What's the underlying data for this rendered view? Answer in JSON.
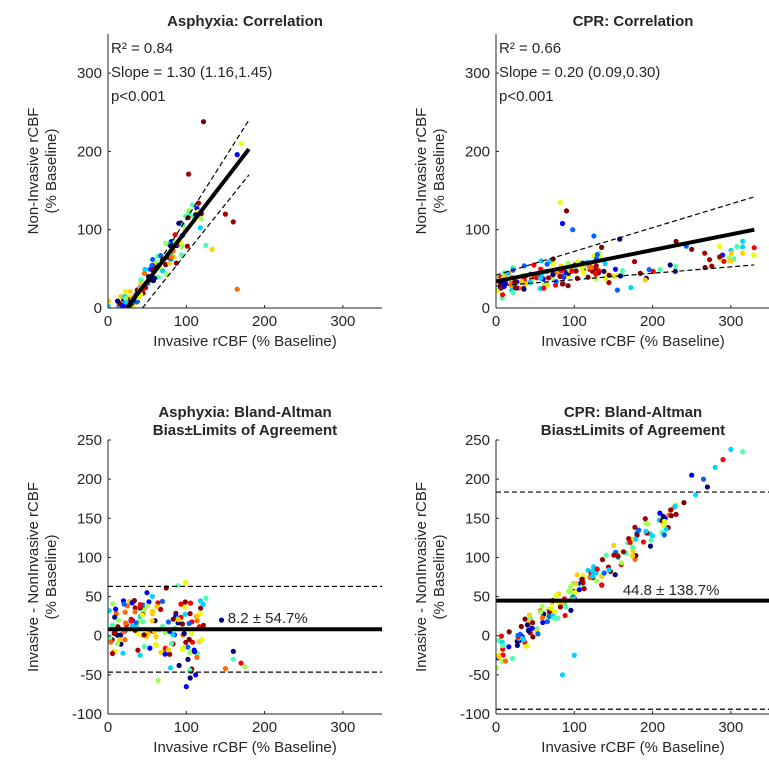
{
  "palette": [
    "#00007f",
    "#0000ff",
    "#0063ff",
    "#00d4ff",
    "#4dffaa",
    "#a0ff56",
    "#e8ff00",
    "#ffd000",
    "#ff6a00",
    "#ff0000",
    "#a00000",
    "#7f0000"
  ],
  "chart_data": [
    {
      "id": "asphyxia-correlation",
      "type": "scatter",
      "title": "Asphyxia: Correlation",
      "xlabel": "Invasive rCBF (% Baseline)",
      "ylabel": [
        "Non-Invasive rCBF",
        "(% Baseline)"
      ],
      "xlim": [
        0,
        350
      ],
      "ylim": [
        0,
        350
      ],
      "xticks": [
        0,
        100,
        200,
        300
      ],
      "yticks": [
        0,
        100,
        200,
        300
      ],
      "stats": {
        "r2": "R² = 0.84",
        "slope": "Slope = 1.30 (1.16,1.45)",
        "p": "p<0.001"
      },
      "fit": {
        "slope": 1.3,
        "intercept": -31,
        "x_range": [
          24,
          180
        ],
        "ci_upper": [
          [
            28,
            0
          ],
          [
            180,
            240
          ]
        ],
        "ci_lower": [
          [
            44,
            0
          ],
          [
            180,
            170
          ]
        ]
      },
      "seed": 11,
      "clusters": [
        {
          "kind": "fit",
          "count": 120,
          "x": [
            12,
            120
          ],
          "slope": 1.3,
          "intercept": -31,
          "spread": 28
        },
        {
          "kind": "box",
          "count": 15,
          "x": [
            0,
            40
          ],
          "y": [
            0,
            15
          ]
        },
        {
          "kind": "points",
          "points": [
            [
              122,
              238
            ],
            [
              103,
              171
            ],
            [
              165,
              196
            ],
            [
              170,
              210
            ],
            [
              133,
              75
            ],
            [
              125,
              80
            ],
            [
              150,
              120
            ],
            [
              160,
              110
            ],
            [
              165,
              24
            ],
            [
              108,
              132
            ]
          ]
        }
      ]
    },
    {
      "id": "cpr-correlation",
      "type": "scatter",
      "title": "CPR: Correlation",
      "xlabel": "Invasive rCBF (% Baseline)",
      "ylabel": [
        "Non-Invasive rCBF",
        "(% Baseline)"
      ],
      "xlim": [
        0,
        350
      ],
      "ylim": [
        0,
        350
      ],
      "xticks": [
        0,
        100,
        200,
        300
      ],
      "yticks": [
        0,
        100,
        200,
        300
      ],
      "stats": {
        "r2": "R² = 0.66",
        "slope": "Slope = 0.20 (0.09,0.30)",
        "p": "p<0.001"
      },
      "fit": {
        "slope": 0.2,
        "intercept": 34,
        "x_range": [
          0,
          330
        ],
        "ci_upper": [
          [
            0,
            42
          ],
          [
            330,
            142
          ]
        ],
        "ci_lower": [
          [
            0,
            28
          ],
          [
            330,
            55
          ]
        ]
      },
      "seed": 23,
      "clusters": [
        {
          "kind": "fit",
          "count": 140,
          "x": [
            0,
            140
          ],
          "slope": 0.2,
          "intercept": 30,
          "spread": 22
        },
        {
          "kind": "fit",
          "count": 40,
          "x": [
            140,
            330
          ],
          "slope": 0.2,
          "intercept": 10,
          "spread": 26
        },
        {
          "kind": "points",
          "points": [
            [
              82,
              135
            ],
            [
              85,
              108
            ],
            [
              98,
              100
            ],
            [
              125,
              92
            ],
            [
              90,
              124
            ],
            [
              158,
              88
            ],
            [
              300,
              60
            ],
            [
              315,
              78
            ],
            [
              250,
              75
            ],
            [
              230,
              85
            ]
          ]
        }
      ]
    },
    {
      "id": "asphyxia-bland-altman",
      "type": "scatter",
      "title": [
        "Asphyxia: Bland-Altman",
        "Bias±Limits of Agreement"
      ],
      "xlabel": "Invasive rCBF (% Baseline)",
      "ylabel": [
        "Invasive - NonInvasive rCBF",
        "(% Baseline)"
      ],
      "xlim": [
        0,
        350
      ],
      "ylim": [
        -100,
        250
      ],
      "xticks": [
        0,
        100,
        200,
        300
      ],
      "yticks": [
        -100,
        -50,
        0,
        50,
        100,
        150,
        200,
        250
      ],
      "bias": 8.2,
      "loa": [
        63,
        -46.5
      ],
      "annotation": "8.2 ± 54.7%",
      "annotation_xy": [
        153,
        16
      ],
      "seed": 37,
      "clusters": [
        {
          "kind": "box",
          "count": 130,
          "x": [
            0,
            125
          ],
          "y": [
            -25,
            45
          ]
        },
        {
          "kind": "box",
          "count": 25,
          "x": [
            40,
            115
          ],
          "y": [
            -60,
            70
          ]
        },
        {
          "kind": "points",
          "points": [
            [
              150,
              -42
            ],
            [
              160,
              -30
            ],
            [
              170,
              -35
            ],
            [
              175,
              -40
            ],
            [
              145,
              20
            ],
            [
              100,
              -65
            ],
            [
              125,
              48
            ],
            [
              112,
              -50
            ],
            [
              160,
              -20
            ]
          ]
        }
      ]
    },
    {
      "id": "cpr-bland-altman",
      "type": "scatter",
      "title": [
        "CPR: Bland-Altman",
        "Bias±Limits of Agreement"
      ],
      "xlabel": "Invasive rCBF (% Baseline)",
      "ylabel": [
        "Invasive - NonInvasive rCBF",
        "(% Baseline)"
      ],
      "xlim": [
        0,
        350
      ],
      "ylim": [
        -100,
        250
      ],
      "xticks": [
        0,
        100,
        200,
        300
      ],
      "yticks": [
        -100,
        -50,
        0,
        50,
        100,
        150,
        200,
        250
      ],
      "bias": 44.8,
      "loa": [
        183.5,
        -93.9
      ],
      "annotation": "44.8 ± 138.7%",
      "annotation_xy": [
        162,
        52
      ],
      "seed": 51,
      "clusters": [
        {
          "kind": "fit",
          "count": 170,
          "x": [
            0,
            230
          ],
          "slope": 0.8,
          "intercept": -25,
          "spread": 24
        },
        {
          "kind": "points",
          "points": [
            [
              250,
              205
            ],
            [
              265,
              200
            ],
            [
              270,
              190
            ],
            [
              280,
              215
            ],
            [
              290,
              225
            ],
            [
              300,
              238
            ],
            [
              315,
              235
            ],
            [
              255,
              180
            ],
            [
              240,
              170
            ],
            [
              85,
              -50
            ],
            [
              100,
              -25
            ],
            [
              230,
              155
            ]
          ]
        }
      ]
    }
  ]
}
